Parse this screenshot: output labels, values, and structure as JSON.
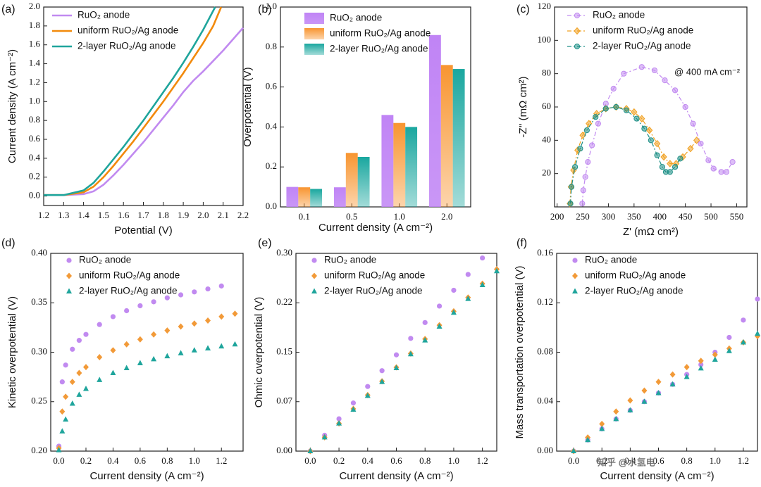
{
  "chart_data": [
    {
      "type": "line",
      "panel_label": "(a)",
      "xlabel": "Potential (V)",
      "ylabel": "Current density (A cm⁻²)",
      "xlim": [
        1.2,
        2.2
      ],
      "ylim": [
        -0.1,
        2.0
      ],
      "xticks": [
        1.2,
        1.3,
        1.4,
        1.5,
        1.6,
        1.7,
        1.8,
        1.9,
        {
          "value": 2.0,
          "label": "2.0"
        },
        2.1,
        2.2
      ],
      "yticks": [
        {
          "value": 0,
          "label": "0.0"
        },
        0.2,
        0.4,
        0.6,
        0.8,
        {
          "value": 1.0,
          "label": "1.0"
        },
        1.2,
        1.4,
        1.6,
        1.8,
        {
          "value": 2.0,
          "label": "2.0"
        }
      ],
      "series": [
        {
          "name": "RuO₂ anode",
          "color": "#c18af0",
          "x": [
            1.2,
            1.3,
            1.4,
            1.45,
            1.5,
            1.55,
            1.6,
            1.65,
            1.7,
            1.75,
            1.8,
            1.85,
            1.9,
            1.95,
            2.0,
            2.05,
            2.1,
            2.15,
            2.2
          ],
          "values": [
            0.01,
            0.01,
            0.02,
            0.05,
            0.12,
            0.22,
            0.33,
            0.45,
            0.57,
            0.7,
            0.83,
            0.96,
            1.1,
            1.22,
            1.32,
            1.43,
            1.54,
            1.66,
            1.78
          ]
        },
        {
          "name": "uniform RuO₂/Ag anode",
          "color": "#f28a0c",
          "x": [
            1.2,
            1.3,
            1.4,
            1.45,
            1.5,
            1.55,
            1.6,
            1.65,
            1.7,
            1.75,
            1.8,
            1.85,
            1.9,
            1.95,
            2.0,
            2.05,
            2.09
          ],
          "values": [
            0.01,
            0.01,
            0.04,
            0.1,
            0.2,
            0.32,
            0.45,
            0.58,
            0.72,
            0.86,
            1.0,
            1.15,
            1.3,
            1.46,
            1.62,
            1.8,
            2.0
          ]
        },
        {
          "name": "2-layer RuO₂/Ag anode",
          "color": "#1fa59c",
          "x": [
            1.2,
            1.3,
            1.4,
            1.45,
            1.5,
            1.55,
            1.6,
            1.65,
            1.7,
            1.75,
            1.8,
            1.85,
            1.9,
            1.95,
            2.0,
            2.06
          ],
          "values": [
            0.01,
            0.01,
            0.06,
            0.14,
            0.26,
            0.39,
            0.52,
            0.66,
            0.8,
            0.95,
            1.1,
            1.25,
            1.41,
            1.58,
            1.76,
            2.0
          ]
        }
      ]
    },
    {
      "type": "bar",
      "panel_label": "(b)",
      "xlabel": "Current density (A cm⁻²)",
      "ylabel": "Overpotential (V)",
      "categories": [
        "0.1",
        "0.5",
        "1.0",
        "2.0"
      ],
      "ylim": [
        0,
        1.0
      ],
      "yticks": [
        {
          "value": 0,
          "label": "0.0"
        },
        0.2,
        0.4,
        0.6,
        0.8,
        {
          "value": 1.0,
          "label": "1.0"
        }
      ],
      "series": [
        {
          "name": "RuO₂ anode",
          "color": "#c084f5",
          "values": [
            0.1,
            0.098,
            0.46,
            0.86
          ]
        },
        {
          "name": "uniform RuO₂/Ag anode",
          "color": "#f89530",
          "values": [
            0.098,
            0.27,
            0.42,
            0.71
          ]
        },
        {
          "name": "2-layer RuO₂/Ag anode",
          "color": "#1aa79f",
          "values": [
            0.09,
            0.25,
            0.4,
            0.69
          ]
        }
      ]
    },
    {
      "type": "line",
      "panel_label": "(c)",
      "xlabel": "Z' (mΩ cm²)",
      "ylabel": "-Z'' (mΩ cm²)",
      "annotation": "@ 400 mA cm⁻²",
      "xlim": [
        195,
        570
      ],
      "ylim": [
        0,
        120
      ],
      "xticks": [
        200,
        250,
        300,
        350,
        400,
        450,
        500,
        550
      ],
      "yticks": [
        20,
        40,
        60,
        80,
        100,
        120
      ],
      "series": [
        {
          "name": "RuO₂ anode",
          "color": "#c18af0",
          "marker": "circle",
          "x": [
            249,
            251,
            255,
            260,
            268,
            280,
            295,
            310,
            330,
            365,
            390,
            410,
            430,
            450,
            465,
            480,
            495,
            505,
            520,
            530,
            542
          ],
          "values": [
            2,
            10,
            18,
            27,
            37,
            50,
            62,
            71,
            80,
            84,
            82,
            76,
            70,
            60,
            50,
            38,
            28,
            23,
            21,
            21,
            27
          ]
        },
        {
          "name": "uniform RuO₂/Ag anode",
          "color": "#f0a020",
          "marker": "diamond",
          "x": [
            225,
            227,
            232,
            240,
            250,
            262,
            277,
            295,
            315,
            335,
            350,
            365,
            380,
            395,
            408,
            420,
            432,
            445,
            460,
            472
          ],
          "values": [
            2,
            12,
            22,
            34,
            43,
            50,
            56,
            59,
            60,
            59,
            57,
            53,
            46,
            38,
            30,
            26,
            26,
            30,
            35,
            40
          ]
        },
        {
          "name": "2-layer RuO₂/Ag anode",
          "color": "#1d8f86",
          "marker": "circle",
          "x": [
            226,
            228,
            235,
            245,
            258,
            275,
            295,
            315,
            335,
            355,
            370,
            383,
            395,
            405,
            412,
            420,
            430,
            440
          ],
          "values": [
            2,
            12,
            24,
            35,
            46,
            54,
            59,
            60,
            58,
            53,
            47,
            40,
            31,
            24,
            21,
            21,
            24,
            29
          ]
        }
      ]
    },
    {
      "type": "scatter",
      "panel_label": "(d)",
      "xlabel": "Current density (A cm⁻²)",
      "ylabel": "Kinetic overpotential (V)",
      "xlim": [
        -0.06,
        1.36
      ],
      "ylim": [
        0.2,
        0.4
      ],
      "xticks": [
        {
          "value": 0,
          "label": "0.0"
        },
        0.2,
        0.4,
        0.6,
        0.8,
        {
          "value": 1.0,
          "label": "1.0"
        },
        1.2
      ],
      "yticks": [
        {
          "value": 0.2,
          "label": "0.20"
        },
        0.25,
        {
          "value": 0.3,
          "label": "0.30"
        },
        0.35,
        {
          "value": 0.4,
          "label": "0.40"
        }
      ],
      "series": [
        {
          "name": "RuO₂ anode",
          "color": "#c18af0",
          "marker": "circle",
          "x": [
            0,
            0.025,
            0.05,
            0.1,
            0.15,
            0.2,
            0.3,
            0.4,
            0.5,
            0.6,
            0.7,
            0.8,
            0.9,
            1.0,
            1.1,
            1.2
          ],
          "values": [
            0.205,
            0.27,
            0.287,
            0.303,
            0.312,
            0.318,
            0.328,
            0.336,
            0.342,
            0.347,
            0.351,
            0.355,
            0.358,
            0.361,
            0.364,
            0.367
          ]
        },
        {
          "name": "uniform RuO₂/Ag anode",
          "color": "#f29a38",
          "marker": "diamond",
          "x": [
            0,
            0.025,
            0.05,
            0.1,
            0.15,
            0.2,
            0.3,
            0.4,
            0.5,
            0.6,
            0.7,
            0.8,
            0.9,
            1.0,
            1.1,
            1.2,
            1.3
          ],
          "values": [
            0.203,
            0.24,
            0.255,
            0.27,
            0.279,
            0.285,
            0.295,
            0.302,
            0.308,
            0.313,
            0.318,
            0.322,
            0.326,
            0.329,
            0.332,
            0.336,
            0.339
          ]
        },
        {
          "name": "2-layer RuO₂/Ag anode",
          "color": "#1fa59c",
          "marker": "triangle",
          "x": [
            0,
            0.025,
            0.05,
            0.1,
            0.15,
            0.2,
            0.3,
            0.4,
            0.5,
            0.6,
            0.7,
            0.8,
            0.9,
            1.0,
            1.1,
            1.2,
            1.3
          ],
          "values": [
            0.201,
            0.22,
            0.232,
            0.248,
            0.257,
            0.263,
            0.272,
            0.279,
            0.284,
            0.289,
            0.293,
            0.296,
            0.299,
            0.302,
            0.304,
            0.306,
            0.308
          ]
        }
      ]
    },
    {
      "type": "scatter",
      "panel_label": "(e)",
      "xlabel": "Current density (A cm⁻²)",
      "ylabel": "Ohmic overpotential (V)",
      "xlim": [
        -0.1,
        1.3
      ],
      "ylim": [
        0,
        0.3
      ],
      "xticks": [
        {
          "value": 0,
          "label": "0.0"
        },
        0.2,
        0.4,
        0.6,
        0.8,
        {
          "value": 1.0,
          "label": "1.0"
        },
        1.2
      ],
      "yticks": [
        {
          "value": 0,
          "label": "0.00"
        },
        {
          "value": 0.075,
          "label": "0.07"
        },
        0.15,
        {
          "value": 0.225,
          "label": "0.22"
        },
        {
          "value": 0.3,
          "label": "0.30"
        }
      ],
      "series": [
        {
          "name": "RuO₂ anode",
          "color": "#c18af0",
          "marker": "circle",
          "x": [
            0,
            0.1,
            0.2,
            0.3,
            0.4,
            0.5,
            0.6,
            0.7,
            0.8,
            0.9,
            1.0,
            1.1,
            1.2
          ],
          "values": [
            0,
            0.024,
            0.049,
            0.073,
            0.098,
            0.122,
            0.146,
            0.171,
            0.195,
            0.22,
            0.244,
            0.268,
            0.293
          ]
        },
        {
          "name": "uniform RuO₂/Ag anode",
          "color": "#f29a38",
          "marker": "diamond",
          "x": [
            0,
            0.1,
            0.2,
            0.3,
            0.4,
            0.5,
            0.6,
            0.7,
            0.8,
            0.9,
            1.0,
            1.1,
            1.2,
            1.3
          ],
          "values": [
            0,
            0.021,
            0.042,
            0.064,
            0.085,
            0.106,
            0.127,
            0.148,
            0.17,
            0.191,
            0.212,
            0.233,
            0.254,
            0.276
          ]
        },
        {
          "name": "2-layer RuO₂/Ag anode",
          "color": "#1fa59c",
          "marker": "triangle",
          "x": [
            0,
            0.1,
            0.2,
            0.3,
            0.4,
            0.5,
            0.6,
            0.7,
            0.8,
            0.9,
            1.0,
            1.1,
            1.2,
            1.3
          ],
          "values": [
            0,
            0.021,
            0.042,
            0.063,
            0.084,
            0.105,
            0.126,
            0.147,
            0.168,
            0.189,
            0.21,
            0.231,
            0.252,
            0.273
          ]
        }
      ]
    },
    {
      "type": "scatter",
      "panel_label": "(f)",
      "xlabel": "Current density (A cm⁻²)",
      "ylabel": "Mass transportation overpotential (V)",
      "xlim": [
        -0.12,
        1.3
      ],
      "ylim": [
        0,
        0.16
      ],
      "xticks": [
        {
          "value": 0,
          "label": "0.0"
        },
        0.2,
        0.4,
        0.6,
        0.8,
        {
          "value": 1.0,
          "label": "1.0"
        },
        1.2
      ],
      "yticks": [
        {
          "value": 0,
          "label": "0.00"
        },
        0.04,
        0.08,
        0.12,
        0.16
      ],
      "series": [
        {
          "name": "RuO₂ anode",
          "color": "#c18af0",
          "marker": "circle",
          "x": [
            0,
            0.1,
            0.2,
            0.3,
            0.4,
            0.5,
            0.6,
            0.7,
            0.8,
            0.9,
            1.0,
            1.1,
            1.2,
            1.3
          ],
          "values": [
            0,
            0.009,
            0.018,
            0.026,
            0.033,
            0.04,
            0.047,
            0.054,
            0.062,
            0.07,
            0.08,
            0.092,
            0.106,
            0.123
          ]
        },
        {
          "name": "uniform RuO₂/Ag anode",
          "color": "#f29a38",
          "marker": "diamond",
          "x": [
            0,
            0.1,
            0.2,
            0.3,
            0.4,
            0.5,
            0.6,
            0.7,
            0.8,
            0.9,
            1.0,
            1.1,
            1.2,
            1.3
          ],
          "values": [
            0,
            0.011,
            0.022,
            0.032,
            0.041,
            0.049,
            0.056,
            0.062,
            0.068,
            0.073,
            0.078,
            0.083,
            0.088,
            0.093
          ]
        },
        {
          "name": "2-layer RuO₂/Ag anode",
          "color": "#1fa59c",
          "marker": "triangle",
          "x": [
            0,
            0.1,
            0.2,
            0.3,
            0.4,
            0.5,
            0.6,
            0.7,
            0.8,
            0.9,
            1.0,
            1.1,
            1.2,
            1.3
          ],
          "values": [
            0,
            0.009,
            0.018,
            0.026,
            0.033,
            0.04,
            0.047,
            0.054,
            0.06,
            0.067,
            0.074,
            0.081,
            0.088,
            0.095
          ]
        }
      ]
    }
  ],
  "watermark": "知乎 @水氢电"
}
